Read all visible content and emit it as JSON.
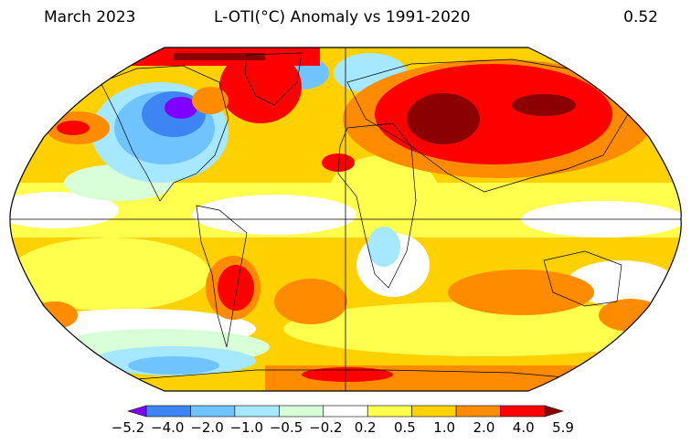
{
  "header": {
    "left": "March 2023",
    "center": "L-OTI(°C) Anomaly vs 1991-2020",
    "right": "0.52"
  },
  "map": {
    "projection": "Robinson",
    "reference_lines": [
      "equator",
      "prime-meridian"
    ]
  },
  "colorbar": {
    "ticks": [
      "−5.2",
      "−4.0",
      "−2.0",
      "−1.0",
      "−0.5",
      "−0.2",
      "0.2",
      "0.5",
      "1.0",
      "2.0",
      "4.0",
      "5.9"
    ],
    "colors": [
      "#8000ff",
      "#3d85f2",
      "#6fc3ff",
      "#a6e8ff",
      "#d8ffd8",
      "#ffffff",
      "#ffff4d",
      "#ffd100",
      "#ff8c00",
      "#ff0000",
      "#8b0000"
    ]
  }
}
